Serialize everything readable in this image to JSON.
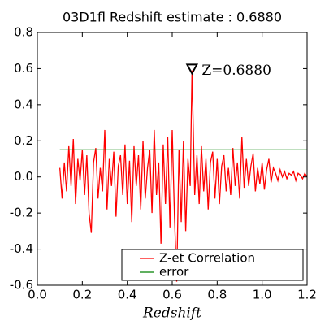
{
  "chart_data": {
    "type": "line",
    "title": "03D1fl Redshift estimate : 0.6880",
    "x_label": "Redshift",
    "xlim": [
      0.0,
      1.2
    ],
    "ylim": [
      -0.6,
      0.8
    ],
    "xticks": [
      {
        "value": 0.0,
        "label": "0.0"
      },
      0.2,
      0.4,
      0.6,
      0.8,
      {
        "value": 1.0,
        "label": "1.0"
      },
      1.2
    ],
    "yticks": [
      -0.6,
      -0.4,
      -0.2,
      {
        "value": 0.0,
        "label": "0.0"
      },
      0.2,
      0.4,
      0.6,
      0.8
    ],
    "legend": "lower right",
    "series": [
      {
        "name": "Z-et Correlation",
        "color": "#ff0000",
        "x": [
          0.1,
          0.11,
          0.12,
          0.13,
          0.14,
          0.15,
          0.16,
          0.17,
          0.18,
          0.19,
          0.2,
          0.21,
          0.22,
          0.23,
          0.24,
          0.25,
          0.26,
          0.27,
          0.28,
          0.29,
          0.3,
          0.31,
          0.32,
          0.33,
          0.34,
          0.35,
          0.36,
          0.37,
          0.38,
          0.39,
          0.4,
          0.41,
          0.42,
          0.43,
          0.44,
          0.45,
          0.46,
          0.47,
          0.48,
          0.49,
          0.5,
          0.51,
          0.52,
          0.53,
          0.54,
          0.55,
          0.56,
          0.57,
          0.58,
          0.59,
          0.6,
          0.61,
          0.62,
          0.63,
          0.64,
          0.65,
          0.66,
          0.67,
          0.68,
          0.688,
          0.7,
          0.71,
          0.72,
          0.73,
          0.74,
          0.75,
          0.76,
          0.77,
          0.78,
          0.79,
          0.8,
          0.81,
          0.82,
          0.83,
          0.84,
          0.85,
          0.86,
          0.87,
          0.88,
          0.89,
          0.9,
          0.91,
          0.92,
          0.93,
          0.94,
          0.95,
          0.96,
          0.97,
          0.98,
          0.99,
          1.0,
          1.01,
          1.02,
          1.03,
          1.04,
          1.05,
          1.06,
          1.07,
          1.08,
          1.09,
          1.1,
          1.11,
          1.12,
          1.13,
          1.14,
          1.15,
          1.16,
          1.17,
          1.18,
          1.19,
          1.2
        ],
        "values": [
          0.05,
          -0.12,
          0.08,
          -0.08,
          0.17,
          -0.05,
          0.21,
          -0.15,
          0.1,
          -0.02,
          0.15,
          -0.1,
          0.12,
          -0.2,
          -0.31,
          0.08,
          0.16,
          -0.12,
          0.05,
          -0.08,
          0.26,
          -0.18,
          0.1,
          -0.05,
          0.14,
          -0.22,
          0.06,
          0.12,
          -0.1,
          0.18,
          -0.15,
          0.09,
          -0.25,
          0.17,
          -0.05,
          0.12,
          -0.18,
          0.2,
          -0.12,
          0.05,
          0.15,
          -0.2,
          0.26,
          -0.1,
          0.08,
          -0.37,
          0.18,
          -0.15,
          0.22,
          -0.28,
          0.26,
          -0.22,
          -0.58,
          0.15,
          -0.25,
          0.2,
          -0.3,
          0.1,
          -0.05,
          0.59,
          -0.1,
          0.12,
          -0.15,
          0.17,
          -0.08,
          0.1,
          -0.18,
          0.08,
          0.14,
          -0.12,
          0.1,
          -0.15,
          0.06,
          0.12,
          -0.08,
          0.05,
          -0.1,
          0.16,
          -0.05,
          0.08,
          -0.12,
          0.22,
          -0.06,
          0.1,
          -0.05,
          0.06,
          0.13,
          -0.08,
          0.05,
          -0.04,
          0.08,
          -0.07,
          0.04,
          0.1,
          -0.03,
          0.05,
          0.02,
          -0.02,
          0.04,
          0.0,
          0.03,
          -0.01,
          0.02,
          0.01,
          0.03,
          -0.02,
          0.02,
          0.01,
          -0.01,
          0.02,
          0.0
        ]
      },
      {
        "name": "error",
        "color": "#008000",
        "x": [
          0.1,
          1.2
        ],
        "values": [
          0.15,
          0.15
        ]
      }
    ],
    "annotation": {
      "text": "Z=0.6880",
      "x": 0.688,
      "y": 0.6
    }
  }
}
